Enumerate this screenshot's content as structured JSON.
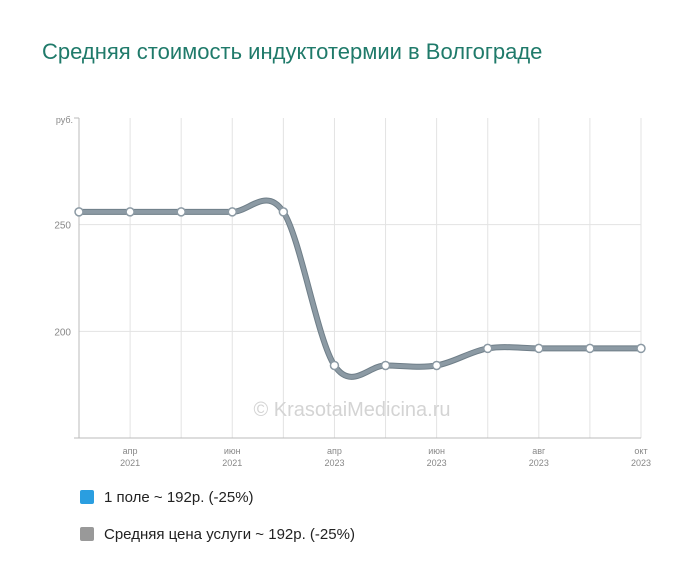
{
  "title": "Средняя стоимость индуктотермии в Волгограде",
  "watermark": "© KrasotaiMedicina.ru",
  "chart_data": {
    "type": "line",
    "yunit": "руб.",
    "ylim": [
      150,
      300
    ],
    "yticks": [
      200,
      250
    ],
    "grid": true,
    "x_labels": [
      {
        "month": "апр",
        "year": "2021"
      },
      {
        "month": "июн",
        "year": "2021"
      },
      {
        "month": "апр",
        "year": "2023"
      },
      {
        "month": "июн",
        "year": "2023"
      },
      {
        "month": "авг",
        "year": "2023"
      },
      {
        "month": "окт",
        "year": "2023"
      }
    ],
    "series": [
      {
        "name": "Средняя цена услуги ~ 192р. (-25%)",
        "color": "#8c9aa4",
        "values": [
          256,
          256,
          256,
          256,
          256,
          184,
          184,
          184,
          192,
          192,
          192,
          192
        ]
      }
    ],
    "legend": [
      {
        "label": "1 поле ~ 192р. (-25%)",
        "color": "#2a9ee0"
      },
      {
        "label": "Средняя цена услуги ~ 192р. (-25%)",
        "color": "#999999"
      }
    ]
  }
}
